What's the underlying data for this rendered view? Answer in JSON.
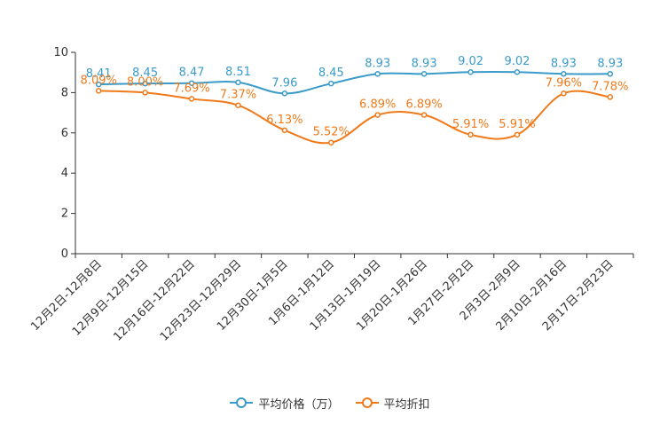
{
  "chart_data": {
    "type": "line",
    "categories": [
      "12月2日-12月8日",
      "12月9日-12月15日",
      "12月16日-12月22日",
      "12月23日-12月29日",
      "12月30日-1月5日",
      "1月6日-1月12日",
      "1月13日-1月19日",
      "1月20日-1月26日",
      "1月27日-2月2日",
      "2月3日-2月9日",
      "2月10日-2月16日",
      "2月17日-2月23日"
    ],
    "ylim": [
      0,
      10
    ],
    "yticks": [
      0,
      2,
      4,
      6,
      8,
      10
    ],
    "series": [
      {
        "name": "平均价格（万）",
        "color": "#3a9bc9",
        "values": [
          8.41,
          8.45,
          8.47,
          8.51,
          7.96,
          8.45,
          8.93,
          8.93,
          9.02,
          9.02,
          8.93,
          8.93
        ],
        "labels": [
          "8.41",
          "8.45",
          "8.47",
          "8.51",
          "7.96",
          "8.45",
          "8.93",
          "8.93",
          "9.02",
          "9.02",
          "8.93",
          "8.93"
        ]
      },
      {
        "name": "平均折扣",
        "color": "#f07a1a",
        "values": [
          8.09,
          8.0,
          7.69,
          7.37,
          6.13,
          5.52,
          6.89,
          6.89,
          5.91,
          5.91,
          7.96,
          7.78
        ],
        "labels": [
          "8.09%",
          "8.00%",
          "7.69%",
          "7.37%",
          "6.13%",
          "5.52%",
          "6.89%",
          "6.89%",
          "5.91%",
          "5.91%",
          "7.96%",
          "7.78%"
        ]
      }
    ],
    "legend_position": "bottom"
  }
}
